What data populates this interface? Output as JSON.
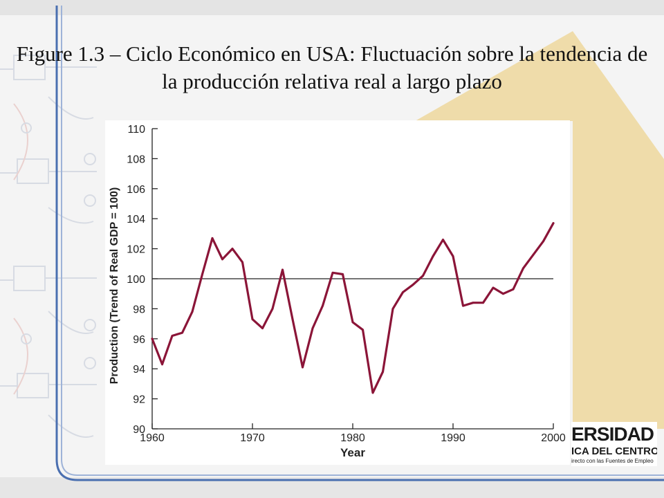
{
  "slide": {
    "title": "Figure 1.3 – Ciclo Económico en USA: Fluctuación sobre la tendencia de la producción relativa real a largo plazo",
    "logo": {
      "line1": "ERSIDAD",
      "line2": "ICA DEL CENTRO",
      "line3": "irecto con las Fuentes de Empleo"
    },
    "colors": {
      "background": "#f4f4f4",
      "accent_triangle": "#efdcaa",
      "frame_blue": "#4a6fb0",
      "series_line": "#8b1538"
    }
  },
  "chart_data": {
    "type": "line",
    "title": "",
    "xlabel": "Year",
    "ylabel": "Production (Trend of Real GDP = 100)",
    "xlim": [
      1960,
      2000
    ],
    "ylim": [
      90,
      110
    ],
    "x_ticks": [
      "1960",
      "1970",
      "1980",
      "1990",
      "2000"
    ],
    "y_ticks": [
      "90",
      "92",
      "94",
      "96",
      "98",
      "100",
      "102",
      "104",
      "106",
      "108",
      "110"
    ],
    "reference_line": 100,
    "grid": false,
    "series": [
      {
        "x": [
          1960,
          1961,
          1962,
          1963,
          1964,
          1965,
          1966,
          1967,
          1968,
          1969,
          1970,
          1971,
          1972,
          1973,
          1974,
          1975,
          1976,
          1977,
          1978,
          1979,
          1980,
          1981,
          1982,
          1983,
          1984,
          1985,
          1986,
          1987,
          1988,
          1989,
          1990,
          1991,
          1992,
          1993,
          1994,
          1995,
          1996,
          1997,
          1998,
          1999,
          2000
        ],
        "values": [
          96.0,
          94.3,
          96.2,
          96.4,
          97.8,
          100.3,
          102.7,
          101.3,
          102.0,
          101.1,
          97.3,
          96.7,
          98.0,
          100.6,
          97.3,
          94.1,
          96.7,
          98.2,
          100.4,
          100.3,
          97.1,
          96.6,
          92.4,
          93.8,
          98.0,
          99.1,
          99.6,
          100.2,
          101.5,
          102.6,
          101.5,
          98.2,
          98.4,
          98.4,
          99.4,
          99.0,
          99.3,
          100.7,
          101.6,
          102.5,
          103.7
        ]
      }
    ]
  }
}
